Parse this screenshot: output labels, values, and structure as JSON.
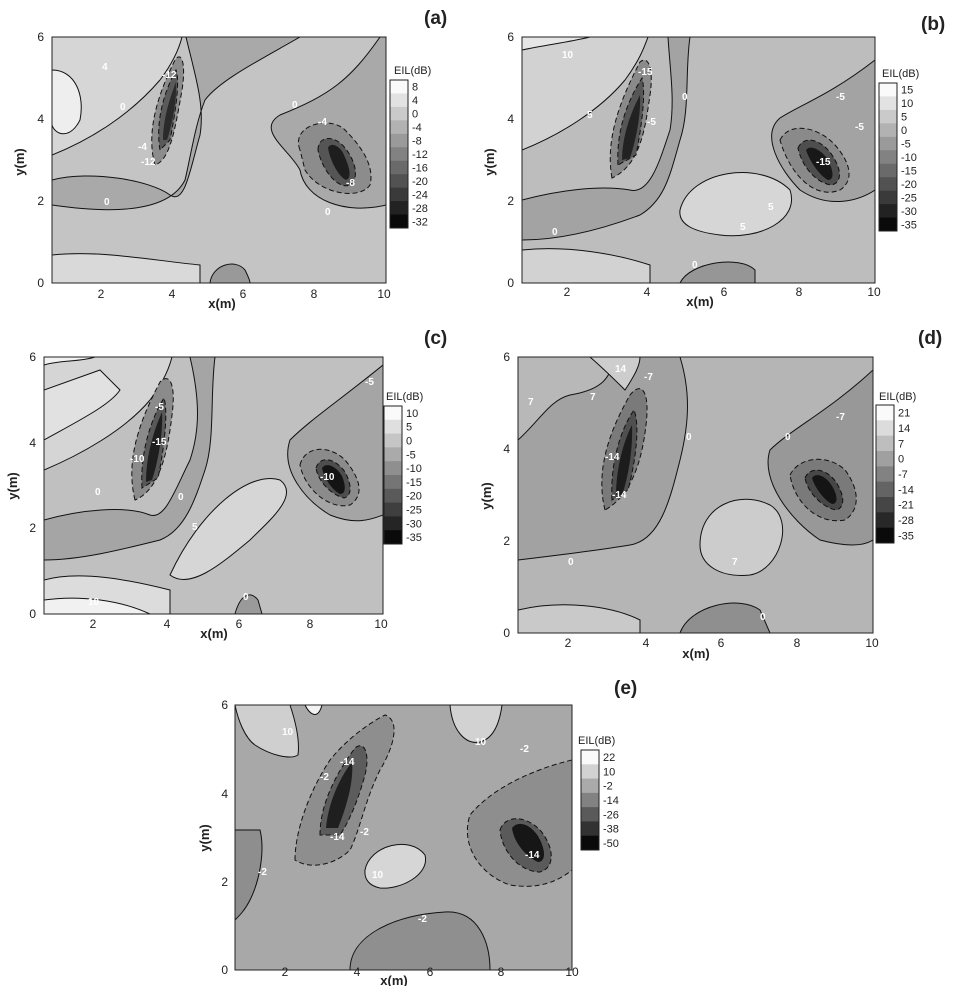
{
  "chart_data": [
    {
      "type": "contour",
      "panel_label": "(a)",
      "xlabel": "x(m)",
      "ylabel": "y(m)",
      "xlim": [
        0.6,
        10
      ],
      "ylim": [
        0,
        6
      ],
      "xticks": [
        "2",
        "4",
        "6",
        "8",
        "10"
      ],
      "yticks": [
        "0",
        "2",
        "4",
        "6"
      ],
      "legend_title": "EIL(dB)",
      "legend_levels": [
        "8",
        "4",
        "0",
        "-4",
        "-8",
        "-12",
        "-16",
        "-20",
        "-24",
        "-28",
        "-32"
      ],
      "contour_labels": [
        "4",
        "0",
        "-4",
        "-8",
        "-12",
        "-28",
        "0",
        "-4",
        "-8",
        "0"
      ],
      "features": {
        "min_value_left": -32,
        "min_center_left": [
          3.4,
          3.2
        ],
        "min_value_right": -32,
        "min_center_right": [
          8.7,
          2.9
        ],
        "max_region": 8
      }
    },
    {
      "type": "contour",
      "panel_label": "(b)",
      "xlabel": "x(m)",
      "ylabel": "y(m)",
      "xlim": [
        0.6,
        10
      ],
      "ylim": [
        0,
        6
      ],
      "xticks": [
        "2",
        "4",
        "6",
        "8",
        "10"
      ],
      "yticks": [
        "0",
        "2",
        "4",
        "6"
      ],
      "legend_title": "EIL(dB)",
      "legend_levels": [
        "15",
        "10",
        "5",
        "0",
        "-5",
        "-10",
        "-15",
        "-20",
        "-25",
        "-30",
        "-35"
      ],
      "contour_labels": [
        "10",
        "5",
        "-5",
        "-15",
        "0",
        "-5",
        "5",
        "5",
        "0",
        "-5",
        "-15",
        "0"
      ],
      "features": {
        "min_value_left": -35,
        "min_center_left": [
          3.3,
          3.1
        ],
        "min_value_right": -35,
        "min_center_right": [
          8.6,
          2.9
        ],
        "max_region": 15
      }
    },
    {
      "type": "contour",
      "panel_label": "(c)",
      "xlabel": "x(m)",
      "ylabel": "y(m)",
      "xlim": [
        0.6,
        10
      ],
      "ylim": [
        0,
        6
      ],
      "xticks": [
        "2",
        "4",
        "6",
        "8",
        "10"
      ],
      "yticks": [
        "0",
        "2",
        "4",
        "6"
      ],
      "legend_title": "EIL(dB)",
      "legend_levels": [
        "10",
        "5",
        "0",
        "-5",
        "-10",
        "-15",
        "-20",
        "-25",
        "-30",
        "-35"
      ],
      "contour_labels": [
        "-5",
        "-15",
        "-10",
        "0",
        "0",
        "5",
        "-5",
        "-10",
        "10",
        "0"
      ],
      "features": {
        "min_value_left": -35,
        "min_center_left": [
          3.4,
          3.1
        ],
        "min_value_right": -35,
        "min_center_right": [
          8.7,
          2.9
        ],
        "max_region": 10
      }
    },
    {
      "type": "contour",
      "panel_label": "(d)",
      "xlabel": "x(m)",
      "ylabel": "y(m)",
      "xlim": [
        0.6,
        10
      ],
      "ylim": [
        0,
        6
      ],
      "xticks": [
        "2",
        "4",
        "6",
        "8",
        "10"
      ],
      "yticks": [
        "0",
        "2",
        "4",
        "6"
      ],
      "legend_title": "EIL(dB)",
      "legend_levels": [
        "21",
        "14",
        "7",
        "0",
        "-7",
        "-14",
        "-21",
        "-28",
        "-35"
      ],
      "contour_labels": [
        "14",
        "7",
        "-7",
        "-14",
        "-14",
        "0",
        "7",
        "0",
        "-7",
        "-14",
        "7",
        "0"
      ],
      "features": {
        "min_value_left": -35,
        "min_center_left": [
          3.3,
          3.3
        ],
        "min_value_right": -35,
        "min_center_right": [
          8.6,
          3.0
        ],
        "max_region": 21
      }
    },
    {
      "type": "contour",
      "panel_label": "(e)",
      "xlabel": "x(m)",
      "ylabel": "y(m)",
      "xlim": [
        0.6,
        10
      ],
      "ylim": [
        0,
        6
      ],
      "xticks": [
        "2",
        "4",
        "6",
        "8",
        "10"
      ],
      "yticks": [
        "0",
        "2",
        "4",
        "6"
      ],
      "legend_title": "EIL(dB)",
      "legend_levels": [
        "22",
        "10",
        "-2",
        "-14",
        "-26",
        "-38",
        "-50"
      ],
      "contour_labels": [
        "10",
        "-14",
        "-2",
        "-14",
        "-2",
        "-2",
        "10",
        "10",
        "-2",
        "-14",
        "-2"
      ],
      "features": {
        "min_value_left": -50,
        "min_center_left": [
          3.4,
          3.2
        ],
        "min_value_right": -50,
        "min_center_right": [
          8.6,
          2.9
        ],
        "max_region": 22
      }
    }
  ]
}
